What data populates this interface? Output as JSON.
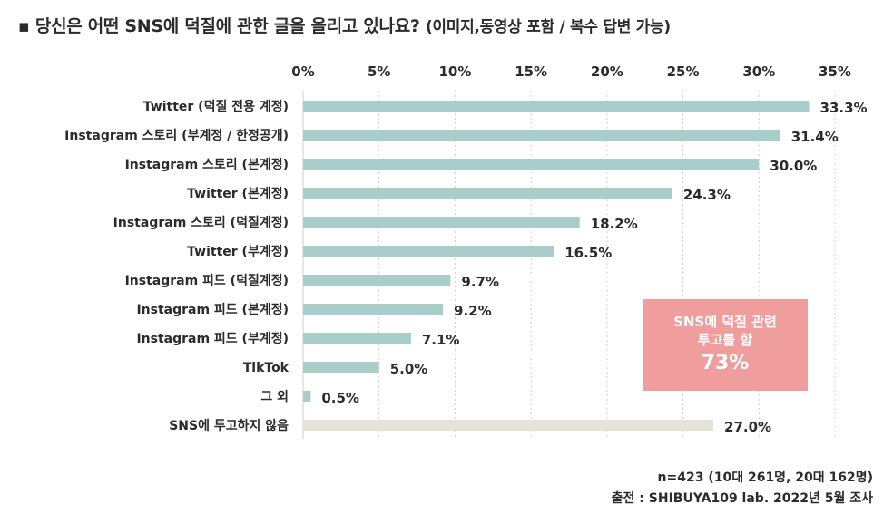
{
  "title": {
    "main": "▪ 당신은 어떤 SNS에 덕질에 관한 글을 올리고 있나요?",
    "sub": "(이미지,동영상 포함 / 복수 답변 가능)"
  },
  "chart_data": {
    "type": "bar",
    "orientation": "horizontal",
    "title": "당신은 어떤 SNS에 덕질에 관한 글을 올리고 있나요? (이미지,동영상 포함 / 복수 답변 가능)",
    "xlabel": "",
    "ylabel": "",
    "xlim": [
      0,
      35
    ],
    "x_ticks": [
      "0%",
      "5%",
      "10%",
      "15%",
      "20%",
      "25%",
      "30%",
      "35%"
    ],
    "x_tick_values": [
      0,
      5,
      10,
      15,
      20,
      25,
      30,
      35
    ],
    "categories": [
      "Twitter (덕질 전용 계정)",
      "Instagram 스토리 (부계정 / 한정공개)",
      "Instagram 스토리 (본계정)",
      "Twitter (본계정)",
      "Instagram 스토리 (덕질계정)",
      "Twitter (부계정)",
      "Instagram 피드 (덕질계정)",
      "Instagram 피드 (본계정)",
      "Instagram 피드 (부계정)",
      "TikTok",
      "그 외",
      "SNS에 투고하지 않음"
    ],
    "values": [
      33.3,
      31.4,
      30.0,
      24.3,
      18.2,
      16.5,
      9.7,
      9.2,
      7.1,
      5.0,
      0.5,
      27.0
    ],
    "value_labels": [
      "33.3%",
      "31.4%",
      "30.0%",
      "24.3%",
      "18.2%",
      "16.5%",
      "9.7%",
      "9.2%",
      "7.1%",
      "5.0%",
      "0.5%",
      "27.0%"
    ],
    "bar_colors": [
      "#a9cdc8",
      "#a9cdc8",
      "#a9cdc8",
      "#a9cdc8",
      "#a9cdc8",
      "#a9cdc8",
      "#a9cdc8",
      "#a9cdc8",
      "#a9cdc8",
      "#a9cdc8",
      "#a9cdc8",
      "#e7e2d8"
    ],
    "grid": true
  },
  "callout": {
    "line1": "SNS에 덕질 관련",
    "line2": "투고를 함",
    "value": "73%"
  },
  "footer": {
    "sample": "n=423 (10대 261명, 20대 162명)",
    "source": "출전 : SHIBUYA109 lab. 2022년 5월 조사"
  },
  "colors": {
    "bar": "#a9cdc8",
    "bar_muted": "#e7e2d8",
    "callout_bg": "#f09d9d",
    "grid": "#cfcfcf"
  }
}
